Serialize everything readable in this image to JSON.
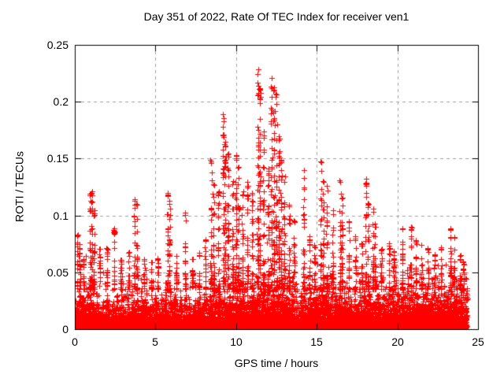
{
  "chart_data": {
    "type": "scatter",
    "title": "Day 351 of 2022, Rate Of TEC Index for receiver ven1",
    "xlabel": "GPS time / hours",
    "ylabel": "ROTI / TECUs",
    "xlim": [
      0,
      25
    ],
    "ylim": [
      0,
      0.25
    ],
    "xticks": [
      0,
      5,
      10,
      15,
      20,
      25
    ],
    "yticks": [
      0,
      0.05,
      0.1,
      0.15,
      0.2,
      0.25
    ],
    "grid": {
      "style": "dashed",
      "color": "#a0a0a0",
      "dash": [
        4,
        4
      ]
    },
    "frame_color": "#000000",
    "background": "#ffffff",
    "marker": {
      "shape": "plus",
      "color": "#ff0000",
      "size": 7
    },
    "x_data_range": [
      0.02,
      24.3
    ],
    "noise_floor": {
      "description": "dense noise band hugging zero across all hours, solid to ~0.022, ragged top to ~0.05",
      "count": 9500,
      "profile": [
        [
          0,
          0.007
        ],
        [
          1,
          0.0075
        ],
        [
          2,
          0.006
        ],
        [
          3,
          0.006
        ],
        [
          4,
          0.0065
        ],
        [
          5,
          0.007
        ],
        [
          6,
          0.0065
        ],
        [
          7,
          0.006
        ],
        [
          8,
          0.0075
        ],
        [
          9,
          0.009
        ],
        [
          10,
          0.0095
        ],
        [
          11,
          0.01
        ],
        [
          12,
          0.011
        ],
        [
          13,
          0.0105
        ],
        [
          14,
          0.008
        ],
        [
          15,
          0.009
        ],
        [
          16,
          0.0095
        ],
        [
          17,
          0.008
        ],
        [
          18,
          0.008
        ],
        [
          19,
          0.0085
        ],
        [
          20,
          0.009
        ],
        [
          21,
          0.0095
        ],
        [
          22,
          0.0095
        ],
        [
          23,
          0.0105
        ],
        [
          24,
          0.0095
        ],
        [
          24.3,
          0.009
        ]
      ]
    },
    "spikes": [
      [
        0.15,
        0.084
      ],
      [
        0.3,
        0.075
      ],
      [
        0.55,
        0.062
      ],
      [
        0.95,
        0.125
      ],
      [
        1.05,
        0.122
      ],
      [
        1.2,
        0.105
      ],
      [
        1.55,
        0.072
      ],
      [
        2.0,
        0.072
      ],
      [
        2.45,
        0.089
      ],
      [
        2.85,
        0.062
      ],
      [
        3.35,
        0.068
      ],
      [
        3.7,
        0.116
      ],
      [
        3.85,
        0.11
      ],
      [
        4.3,
        0.062
      ],
      [
        4.75,
        0.06
      ],
      [
        5.15,
        0.063
      ],
      [
        5.75,
        0.12
      ],
      [
        5.87,
        0.113
      ],
      [
        6.3,
        0.067
      ],
      [
        6.85,
        0.105
      ],
      [
        7.3,
        0.062
      ],
      [
        7.7,
        0.068
      ],
      [
        8.1,
        0.08
      ],
      [
        8.45,
        0.15
      ],
      [
        8.6,
        0.128
      ],
      [
        8.9,
        0.122
      ],
      [
        9.2,
        0.19
      ],
      [
        9.32,
        0.165
      ],
      [
        9.5,
        0.155
      ],
      [
        9.8,
        0.136
      ],
      [
        10.0,
        0.156
      ],
      [
        10.15,
        0.144
      ],
      [
        10.4,
        0.122
      ],
      [
        10.7,
        0.13
      ],
      [
        11.0,
        0.122
      ],
      [
        11.35,
        0.232
      ],
      [
        11.47,
        0.213
      ],
      [
        11.7,
        0.176
      ],
      [
        12.0,
        0.142
      ],
      [
        12.2,
        0.222
      ],
      [
        12.35,
        0.214
      ],
      [
        12.5,
        0.208
      ],
      [
        12.65,
        0.17
      ],
      [
        12.8,
        0.152
      ],
      [
        13.0,
        0.136
      ],
      [
        13.3,
        0.11
      ],
      [
        13.6,
        0.096
      ],
      [
        14.2,
        0.14
      ],
      [
        14.55,
        0.082
      ],
      [
        14.85,
        0.076
      ],
      [
        15.25,
        0.148
      ],
      [
        15.4,
        0.134
      ],
      [
        15.62,
        0.126
      ],
      [
        16.0,
        0.106
      ],
      [
        16.45,
        0.136
      ],
      [
        16.58,
        0.12
      ],
      [
        17.0,
        0.096
      ],
      [
        17.4,
        0.082
      ],
      [
        17.8,
        0.076
      ],
      [
        18.05,
        0.132
      ],
      [
        18.18,
        0.112
      ],
      [
        18.5,
        0.106
      ],
      [
        18.62,
        0.094
      ],
      [
        19.0,
        0.072
      ],
      [
        19.5,
        0.076
      ],
      [
        19.78,
        0.07
      ],
      [
        20.3,
        0.092
      ],
      [
        20.85,
        0.092
      ],
      [
        21.15,
        0.08
      ],
      [
        21.5,
        0.076
      ],
      [
        21.9,
        0.072
      ],
      [
        22.3,
        0.066
      ],
      [
        22.72,
        0.072
      ],
      [
        23.3,
        0.092
      ],
      [
        23.52,
        0.082
      ],
      [
        23.9,
        0.066
      ],
      [
        24.1,
        0.06
      ]
    ]
  }
}
